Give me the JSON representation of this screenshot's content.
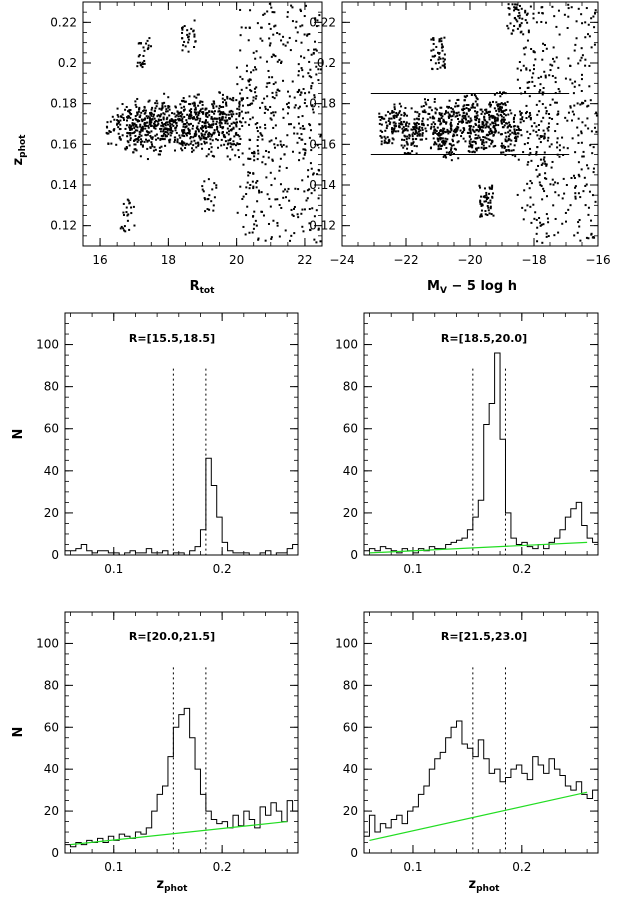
{
  "chart_data": [
    {
      "type": "scatter",
      "xlabel": "R",
      "xlabel_sub": "tot",
      "ylabel": "z",
      "ylabel_sub": "phot",
      "xlim": [
        15.5,
        22.5
      ],
      "ylim": [
        0.11,
        0.23
      ],
      "xticks": [
        "16",
        "18",
        "20",
        "22"
      ],
      "xtick_values": [
        16,
        18,
        20,
        22
      ],
      "yticks": [
        "0.12",
        "0.14",
        "0.16",
        "0.18",
        "0.2",
        "0.22"
      ],
      "ytick_values": [
        0.12,
        0.14,
        0.16,
        0.18,
        0.2,
        0.22
      ],
      "points": [
        [
          16.4,
          0.167
        ],
        [
          16.7,
          0.172
        ],
        [
          16.9,
          0.163
        ],
        [
          17.0,
          0.168
        ],
        [
          17.1,
          0.175
        ],
        [
          17.2,
          0.16
        ],
        [
          17.3,
          0.17
        ],
        [
          17.4,
          0.166
        ],
        [
          17.5,
          0.174
        ],
        [
          17.6,
          0.169
        ],
        [
          17.7,
          0.163
        ],
        [
          17.8,
          0.177
        ],
        [
          17.9,
          0.17
        ],
        [
          18.0,
          0.165
        ],
        [
          18.1,
          0.172
        ],
        [
          18.2,
          0.168
        ],
        [
          18.3,
          0.175
        ],
        [
          18.4,
          0.161
        ],
        [
          18.5,
          0.17
        ],
        [
          18.6,
          0.167
        ],
        [
          18.7,
          0.173
        ],
        [
          18.8,
          0.178
        ],
        [
          18.9,
          0.164
        ],
        [
          19.0,
          0.171
        ],
        [
          19.1,
          0.168
        ],
        [
          19.2,
          0.176
        ],
        [
          19.3,
          0.162
        ],
        [
          19.4,
          0.17
        ],
        [
          19.5,
          0.173
        ],
        [
          19.6,
          0.166
        ],
        [
          19.7,
          0.179
        ],
        [
          19.8,
          0.169
        ],
        [
          19.9,
          0.16
        ],
        [
          20.0,
          0.175
        ],
        [
          20.1,
          0.185
        ],
        [
          20.2,
          0.15
        ],
        [
          20.3,
          0.196
        ],
        [
          20.4,
          0.14
        ],
        [
          20.5,
          0.205
        ],
        [
          20.6,
          0.132
        ],
        [
          20.7,
          0.212
        ],
        [
          20.8,
          0.125
        ],
        [
          20.9,
          0.19
        ],
        [
          21.0,
          0.146
        ],
        [
          21.1,
          0.218
        ],
        [
          21.2,
          0.12
        ],
        [
          21.3,
          0.2
        ],
        [
          21.4,
          0.155
        ],
        [
          21.5,
          0.225
        ],
        [
          21.6,
          0.115
        ],
        [
          21.7,
          0.183
        ],
        [
          21.8,
          0.138
        ],
        [
          21.9,
          0.21
        ],
        [
          22.0,
          0.128
        ],
        [
          22.1,
          0.195
        ],
        [
          22.2,
          0.148
        ],
        [
          22.3,
          0.222
        ],
        [
          22.4,
          0.118
        ],
        [
          17.3,
          0.206
        ],
        [
          18.6,
          0.213
        ],
        [
          19.2,
          0.135
        ],
        [
          16.8,
          0.125
        ]
      ]
    },
    {
      "type": "scatter",
      "xlabel": "M",
      "xlabel_sub": "V",
      "xlabel_rest": " − 5 log h",
      "xlim": [
        -24,
        -16
      ],
      "ylim": [
        0.11,
        0.23
      ],
      "xticks": [
        "−24",
        "−22",
        "−20",
        "−18",
        "−16"
      ],
      "xtick_values": [
        -24,
        -22,
        -20,
        -18,
        -16
      ],
      "yticks": [
        "0.12",
        "0.14",
        "0.16",
        "0.18",
        "0.2",
        "0.22"
      ],
      "ytick_values": [
        0.12,
        0.14,
        0.16,
        0.18,
        0.2,
        0.22
      ],
      "hlines": [
        {
          "y": 0.185,
          "x": [
            -23.1,
            -16.9
          ]
        },
        {
          "y": 0.155,
          "x": [
            -23.1,
            -16.9
          ]
        }
      ],
      "points": [
        [
          -22.6,
          0.168
        ],
        [
          -22.2,
          0.172
        ],
        [
          -21.9,
          0.163
        ],
        [
          -21.6,
          0.17
        ],
        [
          -21.3,
          0.175
        ],
        [
          -21.0,
          0.165
        ],
        [
          -20.8,
          0.171
        ],
        [
          -20.6,
          0.16
        ],
        [
          -20.4,
          0.174
        ],
        [
          -20.2,
          0.168
        ],
        [
          -20.0,
          0.177
        ],
        [
          -19.8,
          0.163
        ],
        [
          -19.6,
          0.17
        ],
        [
          -19.4,
          0.166
        ],
        [
          -19.2,
          0.173
        ],
        [
          -19.0,
          0.178
        ],
        [
          -18.8,
          0.162
        ],
        [
          -18.6,
          0.169
        ],
        [
          -18.4,
          0.185
        ],
        [
          -18.2,
          0.15
        ],
        [
          -18.0,
          0.197
        ],
        [
          -17.8,
          0.14
        ],
        [
          -17.6,
          0.207
        ],
        [
          -17.4,
          0.13
        ],
        [
          -17.2,
          0.214
        ],
        [
          -17.0,
          0.122
        ],
        [
          -16.8,
          0.19
        ],
        [
          -16.6,
          0.145
        ],
        [
          -16.4,
          0.22
        ],
        [
          -16.2,
          0.116
        ],
        [
          -21.0,
          0.205
        ],
        [
          -19.5,
          0.132
        ],
        [
          -18.6,
          0.222
        ],
        [
          -17.9,
          0.119
        ]
      ]
    },
    {
      "type": "bar",
      "title": "R=[15.5,18.5]",
      "ylabel": "N",
      "xlim": [
        0.055,
        0.27
      ],
      "ylim": [
        0,
        115
      ],
      "xticks": [
        "0.1",
        "0.2"
      ],
      "xtick_values": [
        0.1,
        0.2
      ],
      "yticks": [
        "0",
        "20",
        "40",
        "60",
        "80",
        "100"
      ],
      "ytick_values": [
        0,
        20,
        40,
        60,
        80,
        100
      ],
      "vlines": [
        0.155,
        0.185
      ],
      "bin_start": 0.055,
      "bin_width": 0.005,
      "values": [
        2,
        2,
        3,
        5,
        2,
        1,
        2,
        2,
        1,
        1,
        0,
        1,
        2,
        1,
        1,
        3,
        1,
        1,
        2,
        0,
        1,
        1,
        0,
        2,
        4,
        12,
        46,
        33,
        18,
        6,
        2,
        1,
        1,
        1,
        0,
        0,
        1,
        2,
        0,
        1,
        1,
        3,
        5,
        2
      ]
    },
    {
      "type": "bar",
      "title": "R=[18.5,20.0]",
      "xlim": [
        0.055,
        0.27
      ],
      "ylim": [
        0,
        115
      ],
      "xticks": [
        "0.1",
        "0.2"
      ],
      "xtick_values": [
        0.1,
        0.2
      ],
      "yticks": [
        "0",
        "20",
        "40",
        "60",
        "80",
        "100"
      ],
      "ytick_values": [
        0,
        20,
        40,
        60,
        80,
        100
      ],
      "vlines": [
        0.155,
        0.185
      ],
      "bin_start": 0.055,
      "bin_width": 0.005,
      "values": [
        2,
        3,
        2,
        4,
        3,
        2,
        1,
        3,
        2,
        1,
        3,
        2,
        4,
        3,
        3,
        5,
        6,
        7,
        8,
        12,
        18,
        26,
        62,
        72,
        96,
        55,
        20,
        8,
        5,
        6,
        4,
        3,
        5,
        3,
        6,
        8,
        12,
        18,
        22,
        25,
        14,
        8,
        6,
        4
      ],
      "fit": {
        "x": [
          0.06,
          0.26
        ],
        "y": [
          1,
          6
        ]
      }
    },
    {
      "type": "bar",
      "title": "R=[20.0,21.5]",
      "ylabel": "N",
      "xlabel": "z",
      "xlabel_sub": "phot",
      "xlim": [
        0.055,
        0.27
      ],
      "ylim": [
        0,
        115
      ],
      "xticks": [
        "0.1",
        "0.2"
      ],
      "xtick_values": [
        0.1,
        0.2
      ],
      "yticks": [
        "0",
        "20",
        "40",
        "60",
        "80",
        "100"
      ],
      "ytick_values": [
        0,
        20,
        40,
        60,
        80,
        100
      ],
      "vlines": [
        0.155,
        0.185
      ],
      "bin_start": 0.055,
      "bin_width": 0.005,
      "values": [
        4,
        3,
        5,
        4,
        6,
        5,
        7,
        5,
        8,
        6,
        9,
        8,
        7,
        10,
        9,
        12,
        20,
        28,
        32,
        46,
        60,
        66,
        69,
        55,
        40,
        28,
        20,
        16,
        14,
        15,
        12,
        18,
        13,
        20,
        16,
        12,
        22,
        18,
        24,
        20,
        15,
        25,
        20,
        26
      ],
      "fit": {
        "x": [
          0.06,
          0.26
        ],
        "y": [
          4,
          15
        ]
      }
    },
    {
      "type": "bar",
      "title": "R=[21.5,23.0]",
      "xlabel": "z",
      "xlabel_sub": "phot",
      "xlim": [
        0.055,
        0.27
      ],
      "ylim": [
        0,
        115
      ],
      "xticks": [
        "0.1",
        "0.2"
      ],
      "xtick_values": [
        0.1,
        0.2
      ],
      "yticks": [
        "0",
        "20",
        "40",
        "60",
        "80",
        "100"
      ],
      "ytick_values": [
        0,
        20,
        40,
        60,
        80,
        100
      ],
      "vlines": [
        0.155,
        0.185
      ],
      "bin_start": 0.055,
      "bin_width": 0.005,
      "values": [
        8,
        18,
        10,
        14,
        12,
        16,
        18,
        14,
        20,
        22,
        28,
        32,
        40,
        45,
        48,
        55,
        60,
        63,
        52,
        50,
        46,
        54,
        45,
        38,
        40,
        34,
        36,
        40,
        42,
        38,
        35,
        46,
        42,
        38,
        45,
        40,
        37,
        32,
        30,
        34,
        28,
        26,
        30,
        22
      ],
      "fit": {
        "x": [
          0.06,
          0.26
        ],
        "y": [
          6,
          29
        ]
      }
    }
  ]
}
